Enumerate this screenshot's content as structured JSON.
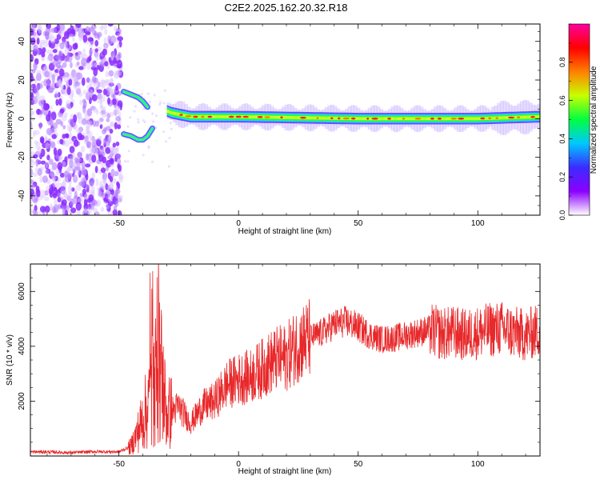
{
  "title": "C2E2.2025.162.20.32.R18",
  "colors": {
    "snr_line": "#e8282a",
    "colormap": [
      "#ffffff",
      "#8b00ff",
      "#3b2cff",
      "#00c8ff",
      "#00ff40",
      "#c8ff00",
      "#ff8000",
      "#ff0000",
      "#ff00a0"
    ]
  },
  "chart_data": [
    {
      "type": "heatmap",
      "title": "C2E2.2025.162.20.32.R18",
      "xlabel": "Height of straight line (km)",
      "ylabel": "Frequency (Hz)",
      "xlim": [
        -87,
        126
      ],
      "ylim": [
        -50,
        49
      ],
      "xticks": [
        -50,
        0,
        50,
        100
      ],
      "xtick_labels": [
        "-50",
        "0",
        "50",
        "100"
      ],
      "yticks": [
        -40,
        -20,
        0,
        20,
        40
      ],
      "ytick_labels": [
        "-40",
        "-20",
        "0",
        "20",
        "40"
      ],
      "colorbar": {
        "label": "Normalized spectral amplitude",
        "range": [
          0,
          1
        ],
        "ticks": [
          0.0,
          0.2,
          0.4,
          0.6,
          0.8
        ],
        "tick_labels": [
          "0.0",
          "0.2",
          "0.4",
          "0.6",
          "0.8"
        ]
      },
      "ridge": [
        {
          "x": -48,
          "f": 13
        },
        {
          "x": -44,
          "f": 11
        },
        {
          "x": -40,
          "f": -11
        },
        {
          "x": -36,
          "f": -4
        },
        {
          "x": -32,
          "f": 5
        },
        {
          "x": -28,
          "f": 3
        },
        {
          "x": -20,
          "f": 1
        },
        {
          "x": 0,
          "f": 1
        },
        {
          "x": 50,
          "f": 0
        },
        {
          "x": 100,
          "f": 0
        },
        {
          "x": 126,
          "f": 1
        }
      ],
      "noise_region_x": [
        -87,
        -49
      ]
    },
    {
      "type": "line",
      "xlabel": "Height of straight line (km)",
      "ylabel": "SNR (10 * v/v)",
      "xlim": [
        -87,
        126
      ],
      "ylim": [
        0,
        7000
      ],
      "xticks": [
        -50,
        0,
        50,
        100
      ],
      "xtick_labels": [
        "-50",
        "0",
        "50",
        "100"
      ],
      "yticks": [
        2000,
        4000,
        6000
      ],
      "ytick_labels": [
        "2000",
        "4000",
        "6000"
      ],
      "series": [
        {
          "x": [
            -87,
            -80,
            -70,
            -60,
            -50,
            -45,
            -42,
            -38,
            -35,
            -33,
            -30,
            -25,
            -20,
            -15,
            -10,
            -5,
            0,
            5,
            10,
            15,
            20,
            25,
            30,
            35,
            40,
            45,
            50,
            55,
            60,
            65,
            70,
            75,
            80,
            85,
            90,
            95,
            100,
            105,
            110,
            115,
            120,
            126
          ],
          "values": [
            150,
            150,
            120,
            160,
            150,
            350,
            900,
            1800,
            2700,
            3500,
            1500,
            1800,
            1200,
            1800,
            2000,
            2600,
            2800,
            2900,
            3200,
            3500,
            3600,
            4100,
            4300,
            4500,
            4800,
            4900,
            4700,
            4400,
            4250,
            4300,
            4400,
            4500,
            4600,
            4450,
            4500,
            4400,
            4500,
            4600,
            4650,
            4500,
            4400,
            4600
          ]
        }
      ]
    }
  ]
}
